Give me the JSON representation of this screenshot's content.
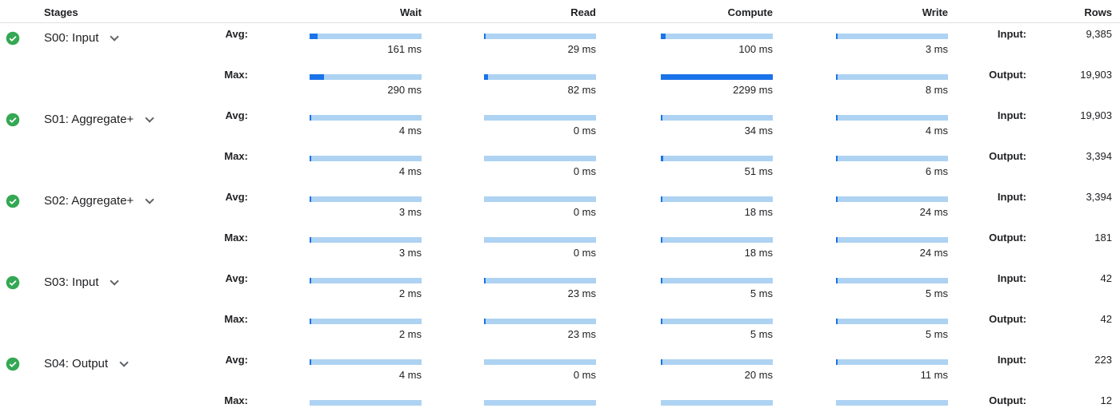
{
  "header": {
    "stages": "Stages",
    "wait": "Wait",
    "read": "Read",
    "compute": "Compute",
    "write": "Write",
    "rows": "Rows"
  },
  "labels": {
    "avg": "Avg:",
    "max": "Max:",
    "input": "Input:",
    "output": "Output:"
  },
  "colors": {
    "bar_track": "#aed3f2",
    "bar_fill": "#1a73e8",
    "check": "#34a853"
  },
  "scale_max_ms": 2299,
  "stages": [
    {
      "name": "S00: Input",
      "avg": {
        "wait": "161 ms",
        "read": "29 ms",
        "compute": "100 ms",
        "write": "3 ms"
      },
      "max": {
        "wait": "290 ms",
        "read": "82 ms",
        "compute": "2299 ms",
        "write": "8 ms"
      },
      "input_rows": "9,385",
      "output_rows": "19,903"
    },
    {
      "name": "S01: Aggregate+",
      "avg": {
        "wait": "4 ms",
        "read": "0 ms",
        "compute": "34 ms",
        "write": "4 ms"
      },
      "max": {
        "wait": "4 ms",
        "read": "0 ms",
        "compute": "51 ms",
        "write": "6 ms"
      },
      "input_rows": "19,903",
      "output_rows": "3,394"
    },
    {
      "name": "S02: Aggregate+",
      "avg": {
        "wait": "3 ms",
        "read": "0 ms",
        "compute": "18 ms",
        "write": "24 ms"
      },
      "max": {
        "wait": "3 ms",
        "read": "0 ms",
        "compute": "18 ms",
        "write": "24 ms"
      },
      "input_rows": "3,394",
      "output_rows": "181"
    },
    {
      "name": "S03: Input",
      "avg": {
        "wait": "2 ms",
        "read": "23 ms",
        "compute": "5 ms",
        "write": "5 ms"
      },
      "max": {
        "wait": "2 ms",
        "read": "23 ms",
        "compute": "5 ms",
        "write": "5 ms"
      },
      "input_rows": "42",
      "output_rows": "42"
    },
    {
      "name": "S04: Output",
      "avg": {
        "wait": "4 ms",
        "read": "0 ms",
        "compute": "20 ms",
        "write": "11 ms"
      },
      "max": {
        "wait": "",
        "read": "",
        "compute": "",
        "write": ""
      },
      "input_rows": "223",
      "output_rows": "12"
    }
  ]
}
